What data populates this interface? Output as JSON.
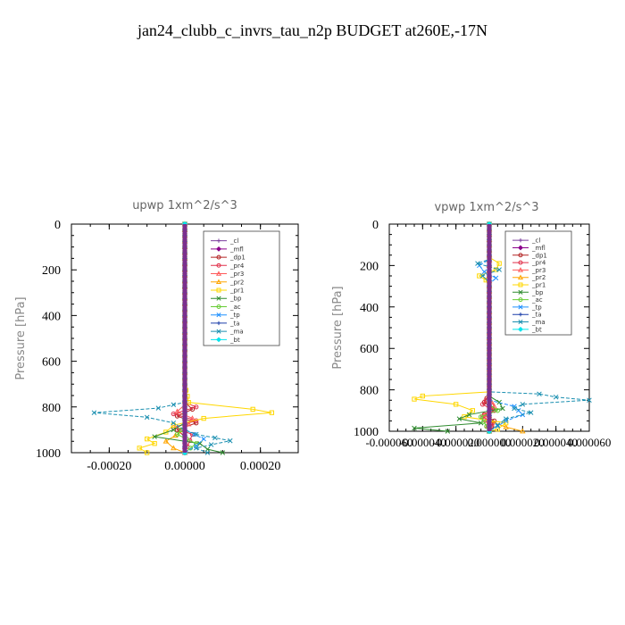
{
  "figure": {
    "title": "jan24_clubb_c_invrs_tau_n2p  BUDGET at260E,-17N"
  },
  "chart_data": [
    {
      "type": "line",
      "title": "upwp   1xm^2/s^3",
      "ylabel": "Pressure  [hPa]",
      "xlabel": "",
      "xlim": [
        -0.0003,
        0.0003
      ],
      "ylim": [
        1000,
        0
      ],
      "y_inverted": true,
      "x_tick_labels": [
        "-0.00020",
        "0.00000",
        "0.00020"
      ],
      "y_tick_labels": [
        "0",
        "200",
        "400",
        "600",
        "800",
        "1000"
      ],
      "grid": false,
      "legend_position": "top-right",
      "series": [
        {
          "name": "_cl",
          "color": "#7b3f9e",
          "marker": "+",
          "points": [
            [
              0,
              0
            ],
            [
              0,
              250
            ],
            [
              0,
              500
            ],
            [
              0,
              750
            ],
            [
              0,
              1000
            ]
          ]
        },
        {
          "name": "_mfl",
          "color": "#8b008b",
          "marker": "diamond",
          "points": [
            [
              0,
              0
            ],
            [
              0,
              250
            ],
            [
              0,
              500
            ],
            [
              0,
              750
            ],
            [
              0,
              1000
            ]
          ]
        },
        {
          "name": "_dp1",
          "color": "#b22222",
          "marker": "circle",
          "points": [
            [
              0,
              0
            ],
            [
              0,
              780
            ],
            [
              2e-05,
              810
            ],
            [
              -2e-05,
              840
            ],
            [
              3e-05,
              870
            ],
            [
              -2e-05,
              900
            ],
            [
              0,
              930
            ],
            [
              0,
              1000
            ]
          ]
        },
        {
          "name": "_pr4",
          "color": "#e0304a",
          "marker": "circle",
          "points": [
            [
              0,
              0
            ],
            [
              0,
              780
            ],
            [
              3e-05,
              800
            ],
            [
              -3e-05,
              830
            ],
            [
              3e-05,
              860
            ],
            [
              -3e-05,
              890
            ],
            [
              2e-05,
              920
            ],
            [
              0,
              1000
            ]
          ]
        },
        {
          "name": "_pr3",
          "color": "#ff5a5a",
          "marker": "triangle",
          "points": [
            [
              0,
              0
            ],
            [
              0,
              790
            ],
            [
              -2e-05,
              820
            ],
            [
              2e-05,
              850
            ],
            [
              0,
              900
            ],
            [
              0,
              1000
            ]
          ]
        },
        {
          "name": "_pr2",
          "color": "#ffa500",
          "marker": "triangle",
          "points": [
            [
              0,
              0
            ],
            [
              0,
              900
            ],
            [
              -5e-05,
              950
            ],
            [
              -3e-05,
              980
            ],
            [
              0,
              1000
            ]
          ]
        },
        {
          "name": "_pr1",
          "color": "#ffd700",
          "marker": "square",
          "points": [
            [
              0,
              0
            ],
            [
              0,
              700
            ],
            [
              1e-05,
              780
            ],
            [
              0.00018,
              810
            ],
            [
              0.00023,
              825
            ],
            [
              5e-05,
              850
            ],
            [
              -3e-05,
              880
            ],
            [
              -5e-05,
              910
            ],
            [
              -0.0001,
              940
            ],
            [
              -8e-05,
              960
            ],
            [
              -0.00012,
              980
            ],
            [
              -0.0001,
              1000
            ]
          ]
        },
        {
          "name": "_bp",
          "color": "#2e8b2e",
          "marker": "x",
          "points": [
            [
              0,
              0
            ],
            [
              0,
              870
            ],
            [
              -3e-05,
              900
            ],
            [
              -8e-05,
              930
            ],
            [
              4e-05,
              960
            ],
            [
              6e-05,
              985
            ],
            [
              0.0001,
              1000
            ]
          ]
        },
        {
          "name": "_ac",
          "color": "#66cc33",
          "marker": "circle",
          "points": [
            [
              0,
              0
            ],
            [
              0,
              880
            ],
            [
              -2e-05,
              920
            ],
            [
              3e-05,
              960
            ],
            [
              0,
              1000
            ]
          ]
        },
        {
          "name": "_tp",
          "color": "#1e90ff",
          "marker": "x",
          "points": [
            [
              0,
              0
            ],
            [
              0,
              900
            ],
            [
              5e-05,
              940
            ],
            [
              3e-05,
              970
            ],
            [
              0,
              1000
            ]
          ]
        },
        {
          "name": "_ta",
          "color": "#1c3faa",
          "marker": "+",
          "points": [
            [
              0,
              0
            ],
            [
              0,
              1000
            ]
          ]
        },
        {
          "name": "_ma",
          "color": "#1a8fb0",
          "marker": "x",
          "points": [
            [
              0,
              0
            ],
            [
              0,
              780
            ],
            [
              -3e-05,
              790
            ],
            [
              -7e-05,
              805
            ],
            [
              -0.00024,
              825
            ],
            [
              -0.0001,
              845
            ],
            [
              -3e-05,
              870
            ],
            [
              0,
              900
            ],
            [
              3e-05,
              920
            ],
            [
              8e-05,
              935
            ],
            [
              0.00012,
              948
            ],
            [
              7e-05,
              965
            ],
            [
              3e-05,
              980
            ],
            [
              6e-05,
              1000
            ]
          ]
        },
        {
          "name": "_bt",
          "color": "#00e5ee",
          "marker": "diamond",
          "points": [
            [
              0,
              0
            ],
            [
              0,
              1000
            ]
          ]
        }
      ]
    },
    {
      "type": "line",
      "title": "vpwp   1xm^2/s^3",
      "ylabel": "Pressure  [hPa]",
      "xlabel": "",
      "xlim": [
        -6e-05,
        6e-05
      ],
      "ylim": [
        1000,
        0
      ],
      "y_inverted": true,
      "x_tick_labels": [
        "-0.000060",
        "-0.000040",
        "-0.000020",
        "0.000000",
        "0.000020",
        "0.000040",
        "0.000060"
      ],
      "x_tick_values": [
        -6e-05,
        -4e-05,
        -2e-05,
        0,
        2e-05,
        4e-05,
        6e-05
      ],
      "y_tick_labels": [
        "0",
        "200",
        "400",
        "600",
        "800",
        "1000"
      ],
      "grid": false,
      "legend_position": "top-right",
      "series": [
        {
          "name": "_cl",
          "color": "#7b3f9e",
          "marker": "+",
          "points": [
            [
              0,
              0
            ],
            [
              0,
              500
            ],
            [
              0,
              1000
            ]
          ]
        },
        {
          "name": "_mfl",
          "color": "#8b008b",
          "marker": "diamond",
          "points": [
            [
              0,
              0
            ],
            [
              0,
              500
            ],
            [
              0,
              1000
            ]
          ]
        },
        {
          "name": "_dp1",
          "color": "#b22222",
          "marker": "circle",
          "points": [
            [
              0,
              0
            ],
            [
              0,
              820
            ],
            [
              -3e-06,
              860
            ],
            [
              2e-06,
              890
            ],
            [
              -3e-06,
              920
            ],
            [
              3e-06,
              950
            ],
            [
              0,
              1000
            ]
          ]
        },
        {
          "name": "_pr4",
          "color": "#e0304a",
          "marker": "circle",
          "points": [
            [
              0,
              0
            ],
            [
              0,
              830
            ],
            [
              -4e-06,
              870
            ],
            [
              3e-06,
              900
            ],
            [
              -4e-06,
              930
            ],
            [
              2e-06,
              960
            ],
            [
              0,
              1000
            ]
          ]
        },
        {
          "name": "_pr3",
          "color": "#ff5a5a",
          "marker": "triangle",
          "points": [
            [
              0,
              0
            ],
            [
              0,
              840
            ],
            [
              3e-06,
              880
            ],
            [
              -3e-06,
              920
            ],
            [
              0,
              1000
            ]
          ]
        },
        {
          "name": "_pr2",
          "color": "#ffa500",
          "marker": "triangle",
          "points": [
            [
              0,
              0
            ],
            [
              0,
              950
            ],
            [
              1e-05,
              980
            ],
            [
              2e-05,
              1000
            ]
          ]
        },
        {
          "name": "_pr1",
          "color": "#ffd700",
          "marker": "square",
          "points": [
            [
              0,
              0
            ],
            [
              0,
              160
            ],
            [
              6e-06,
              190
            ],
            [
              4e-06,
              220
            ],
            [
              -6e-06,
              250
            ],
            [
              -2e-06,
              270
            ],
            [
              0,
              300
            ],
            [
              0,
              810
            ],
            [
              -4e-05,
              830
            ],
            [
              -4.5e-05,
              845
            ],
            [
              -2e-05,
              870
            ],
            [
              -1e-05,
              900
            ],
            [
              -1.5e-05,
              930
            ],
            [
              1e-05,
              960
            ],
            [
              5e-06,
              990
            ],
            [
              0,
              1000
            ]
          ]
        },
        {
          "name": "_bp",
          "color": "#2e8b2e",
          "marker": "x",
          "points": [
            [
              0,
              0
            ],
            [
              0,
              830
            ],
            [
              6e-06,
              860
            ],
            [
              8e-06,
              890
            ],
            [
              -1.2e-05,
              920
            ],
            [
              -1.8e-05,
              940
            ],
            [
              -5e-06,
              960
            ],
            [
              -4.5e-05,
              985
            ],
            [
              -2.5e-05,
              1000
            ]
          ]
        },
        {
          "name": "_ac",
          "color": "#66cc33",
          "marker": "circle",
          "points": [
            [
              0,
              0
            ],
            [
              0,
              870
            ],
            [
              5e-06,
              900
            ],
            [
              -5e-06,
              930
            ],
            [
              0,
              1000
            ]
          ]
        },
        {
          "name": "_tp",
          "color": "#1e90ff",
          "marker": "x",
          "points": [
            [
              0,
              0
            ],
            [
              0,
              170
            ],
            [
              -6e-06,
              200
            ],
            [
              -3e-06,
              230
            ],
            [
              4e-06,
              260
            ],
            [
              0,
              290
            ],
            [
              0,
              850
            ],
            [
              1.5e-05,
              880
            ],
            [
              2e-05,
              920
            ],
            [
              1e-05,
              950
            ],
            [
              0,
              1000
            ]
          ]
        },
        {
          "name": "_ta",
          "color": "#1c3faa",
          "marker": "+",
          "points": [
            [
              0,
              0
            ],
            [
              0,
              1000
            ]
          ]
        },
        {
          "name": "_ma",
          "color": "#1a8fb0",
          "marker": "x",
          "points": [
            [
              0,
              0
            ],
            [
              0,
              170
            ],
            [
              -7e-06,
              190
            ],
            [
              6e-06,
              220
            ],
            [
              -4e-06,
              250
            ],
            [
              0,
              280
            ],
            [
              0,
              810
            ],
            [
              3e-05,
              820
            ],
            [
              4e-05,
              835
            ],
            [
              6e-05,
              850
            ],
            [
              2e-05,
              870
            ],
            [
              1.5e-05,
              890
            ],
            [
              2.5e-05,
              910
            ],
            [
              1e-05,
              940
            ],
            [
              5e-06,
              970
            ],
            [
              0,
              1000
            ]
          ]
        },
        {
          "name": "_bt",
          "color": "#00e5ee",
          "marker": "diamond",
          "points": [
            [
              0,
              0
            ],
            [
              0,
              1000
            ]
          ]
        }
      ]
    }
  ]
}
